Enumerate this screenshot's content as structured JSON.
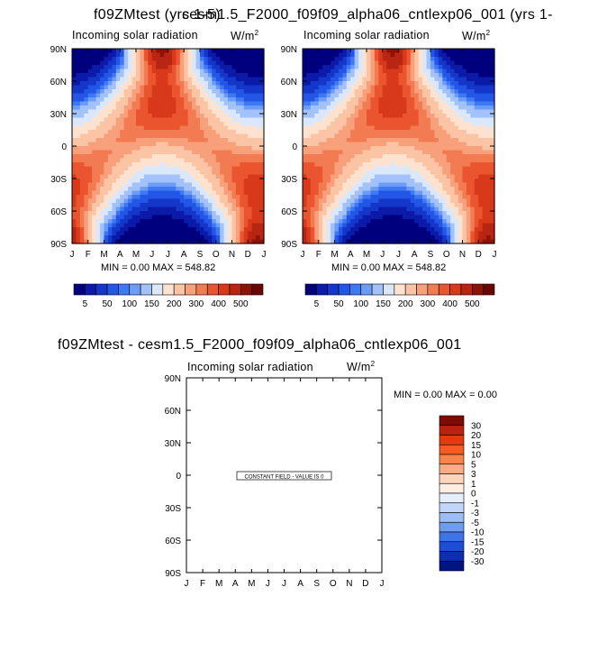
{
  "page": {
    "overlap_title_a": "f09ZMtest (yrs 1-5)",
    "overlap_title_b": "cesm1.5_F2000_f09f09_alpha06_cntlexp06_001 (yrs 1-",
    "bottom_title": "f09ZMtest - cesm1.5_F2000_f09f09_alpha06_cntlexp06_001"
  },
  "chart_data": [
    {
      "type": "heatmap",
      "id": "panel-left",
      "title": "Incoming solar radiation",
      "units": "W/m",
      "units_sup": "2",
      "x_ticks": [
        "J",
        "F",
        "M",
        "A",
        "M",
        "J",
        "J",
        "A",
        "S",
        "O",
        "N",
        "D",
        "J"
      ],
      "y_ticks": [
        "90N",
        "60N",
        "30N",
        "0",
        "30S",
        "60S",
        "90S"
      ],
      "xlim": [
        0,
        12
      ],
      "ylim": [
        -90,
        90
      ],
      "stats": "MIN =    0.00 MAX = 548.82",
      "min": 0.0,
      "max": 548.82,
      "field": "insolation",
      "levels": [
        5,
        50,
        100,
        150,
        200,
        300,
        400,
        500
      ],
      "colorbar_labels": [
        "5",
        "50",
        "100",
        "150",
        "200",
        "300",
        "400",
        "500"
      ]
    },
    {
      "type": "heatmap",
      "id": "panel-right",
      "title": "Incoming solar radiation",
      "units": "W/m",
      "units_sup": "2",
      "x_ticks": [
        "J",
        "F",
        "M",
        "A",
        "M",
        "J",
        "J",
        "A",
        "S",
        "O",
        "N",
        "D",
        "J"
      ],
      "y_ticks": [
        "90N",
        "60N",
        "30N",
        "0",
        "30S",
        "60S",
        "90S"
      ],
      "xlim": [
        0,
        12
      ],
      "ylim": [
        -90,
        90
      ],
      "stats": "MIN =    0.00 MAX = 548.82",
      "min": 0.0,
      "max": 548.82,
      "field": "insolation",
      "levels": [
        5,
        50,
        100,
        150,
        200,
        300,
        400,
        500
      ],
      "colorbar_labels": [
        "5",
        "50",
        "100",
        "150",
        "200",
        "300",
        "400",
        "500"
      ]
    },
    {
      "type": "heatmap",
      "id": "panel-diff",
      "title": "Incoming solar radiation",
      "units": "W/m",
      "units_sup": "2",
      "x_ticks": [
        "J",
        "F",
        "M",
        "A",
        "M",
        "J",
        "J",
        "A",
        "S",
        "O",
        "N",
        "D",
        "J"
      ],
      "y_ticks": [
        "90N",
        "60N",
        "30N",
        "0",
        "30S",
        "60S",
        "90S"
      ],
      "xlim": [
        0,
        12
      ],
      "ylim": [
        -90,
        90
      ],
      "stats": "MIN =    0.00 MAX =    0.00",
      "min": 0.0,
      "max": 0.0,
      "field": "constant",
      "annotation": "CONSTANT FIELD - VALUE IS 0",
      "colorbar_labels": [
        "30",
        "20",
        "15",
        "10",
        "5",
        "3",
        "1",
        "0",
        "-1",
        "-3",
        "-5",
        "-10",
        "-15",
        "-20",
        "-30"
      ]
    }
  ],
  "colors": {
    "abs_scale": [
      "#00007f",
      "#0b1aa8",
      "#1437c9",
      "#2356e6",
      "#3e78f3",
      "#6c9cf7",
      "#a4c2fa",
      "#dbe8fc",
      "#fde3cf",
      "#fbc4a4",
      "#f8a07b",
      "#f37b52",
      "#ea552f",
      "#d8391b",
      "#b82512",
      "#8e1208",
      "#6b0504"
    ],
    "diff_scale": [
      "#7f0a04",
      "#b8220f",
      "#e33a12",
      "#f45c23",
      "#f8844c",
      "#fbab85",
      "#fcd5bd",
      "#fdeee3",
      "#e6eefc",
      "#c3d6fa",
      "#9bbcf5",
      "#6e9cef",
      "#3e74e6",
      "#1d4ed6",
      "#0b2fb0",
      "#00157f"
    ]
  }
}
